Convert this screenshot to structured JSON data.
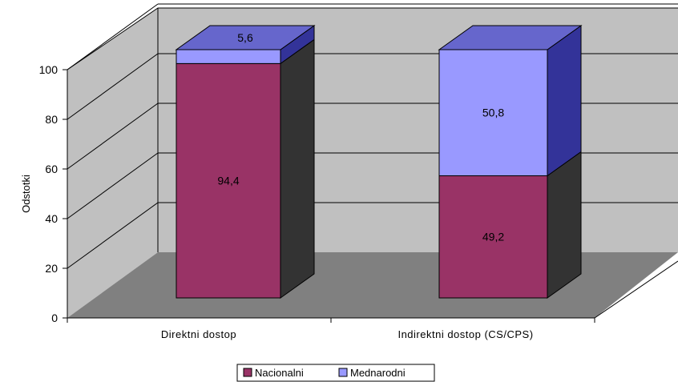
{
  "chart_data": {
    "type": "bar",
    "stacked": true,
    "three_d": true,
    "title": "",
    "xlabel": "",
    "ylabel": "Odstotki",
    "ylim": [
      0,
      100
    ],
    "yticks": [
      "0",
      "20",
      "40",
      "60",
      "80",
      "100"
    ],
    "categories": [
      "Direktni dostop",
      "Indirektni dostop (CS/CPS)"
    ],
    "series": [
      {
        "name": "Nacionalni",
        "values": [
          94.4,
          49.2
        ],
        "value_labels": [
          "94,4",
          "49,2"
        ]
      },
      {
        "name": "Mednarodni",
        "values": [
          5.6,
          50.8
        ],
        "value_labels": [
          "5,6",
          "50,8"
        ]
      }
    ],
    "legend_position": "bottom",
    "grid": true
  },
  "colors": {
    "nacionalni_front": "#993366",
    "nacionalni_side": "#333333",
    "nacionalni_top": "#7a2952",
    "mednarodni_front": "#9999ff",
    "mednarodni_side": "#333399",
    "mednarodni_top": "#6666cc",
    "back_wall": "#c0c0c0",
    "side_wall": "#c0c0c0",
    "floor": "#808080"
  }
}
